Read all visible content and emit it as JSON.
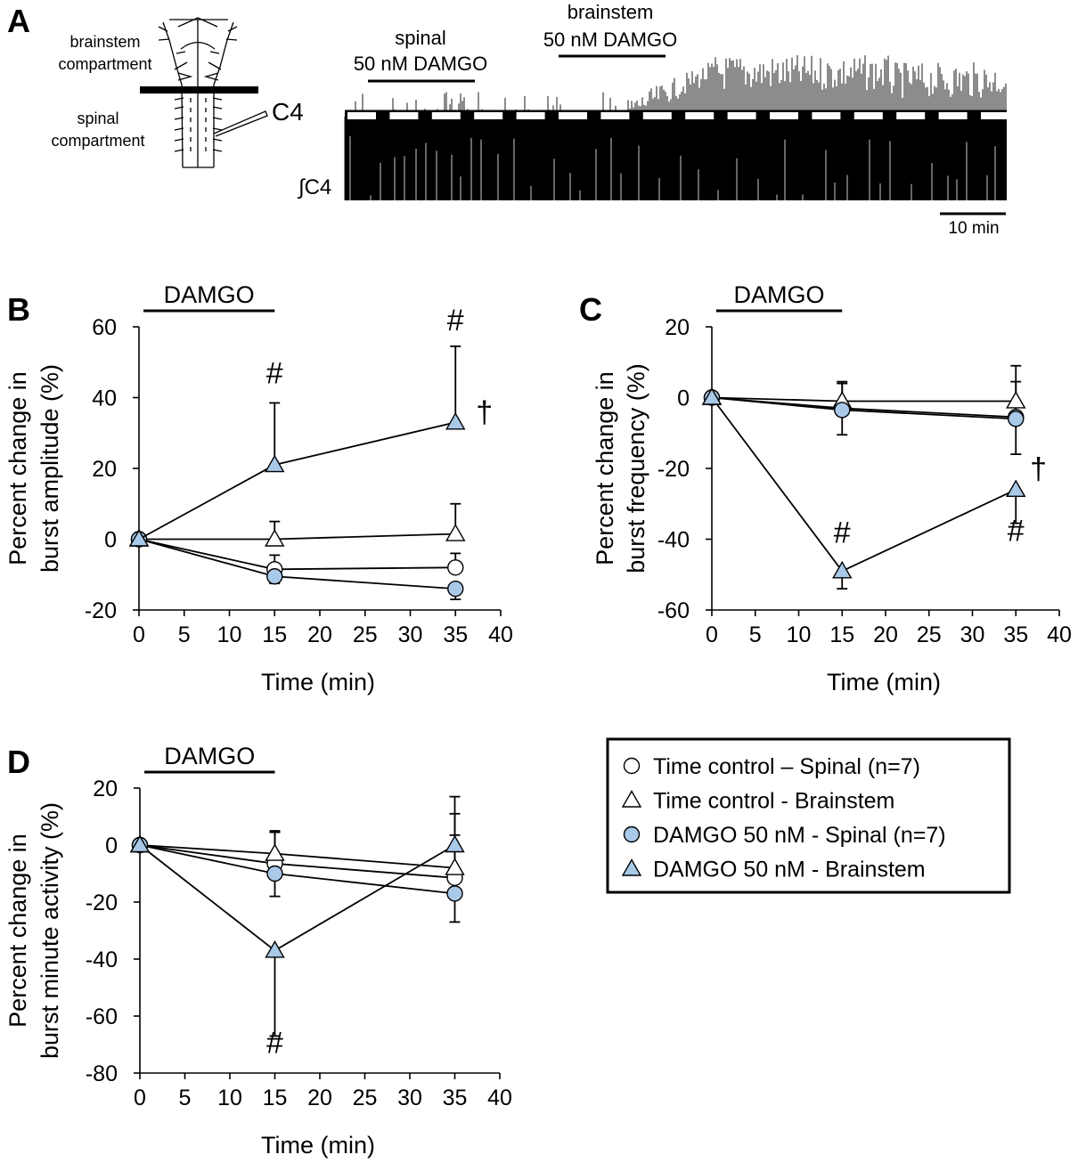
{
  "colors": {
    "accent": "#a9c9e8",
    "ink": "#000000",
    "paper": "#ffffff"
  },
  "panel_a": {
    "letter": "A",
    "schematic": {
      "brainstem_line1": "brainstem",
      "brainstem_line2": "compartment",
      "spinal_line1": "spinal",
      "spinal_line2": "compartment",
      "electrode_label": "C4"
    },
    "trace": {
      "spinal_drug_line1": "spinal",
      "spinal_drug_line2": "50 nM DAMGO",
      "brainstem_drug_line1": "brainstem",
      "brainstem_drug_line2": "50 nM DAMGO",
      "trace_label": "∫C4",
      "scale_bar_label": "10 min"
    }
  },
  "legend": {
    "entries": [
      {
        "label": "Time control – Spinal (n=7)",
        "marker": "circle",
        "fill": "#ffffff"
      },
      {
        "label": "Time control - Brainstem",
        "marker": "triangle",
        "fill": "#ffffff"
      },
      {
        "label": "DAMGO 50 nM - Spinal (n=7)",
        "marker": "circle",
        "fill": "#a9c9e8"
      },
      {
        "label": "DAMGO 50 nM - Brainstem",
        "marker": "triangle",
        "fill": "#a9c9e8"
      }
    ]
  },
  "chart_data": [
    {
      "id": "B",
      "letter": "B",
      "type": "line",
      "title": "",
      "xlabel": "Time (min)",
      "ylabel_line1": "Percent change in",
      "ylabel_line2": "burst amplitude (%)",
      "xlim": [
        0,
        40
      ],
      "ylim": [
        -20,
        60
      ],
      "xticks": [
        0,
        5,
        10,
        15,
        20,
        25,
        30,
        35,
        40
      ],
      "yticks": [
        -20,
        0,
        20,
        40,
        60
      ],
      "drug_bar": {
        "label": "DAMGO",
        "from": 0.5,
        "to": 15
      },
      "x": [
        0,
        15,
        35
      ],
      "series": [
        {
          "name": "Time control – Spinal (n=7)",
          "marker": "circle",
          "fill": "#ffffff",
          "values": [
            0,
            -8.5,
            -8
          ],
          "errors": [
            0,
            4,
            4
          ]
        },
        {
          "name": "Time control - Brainstem",
          "marker": "triangle",
          "fill": "#ffffff",
          "values": [
            0,
            0,
            1.5
          ],
          "errors": [
            0,
            5,
            8.5
          ]
        },
        {
          "name": "DAMGO 50 nM - Spinal (n=7)",
          "marker": "circle",
          "fill": "#a9c9e8",
          "values": [
            0,
            -10.5,
            -14
          ],
          "errors": [
            0,
            2,
            3
          ]
        },
        {
          "name": "DAMGO 50 nM - Brainstem",
          "marker": "triangle",
          "fill": "#a9c9e8",
          "values": [
            0,
            21,
            33
          ],
          "errors": [
            0,
            17.5,
            21.5
          ]
        }
      ],
      "annotations": [
        {
          "text": "#",
          "x": 15,
          "y": 44
        },
        {
          "text": "#",
          "x": 35,
          "y": 59
        },
        {
          "text": "†",
          "x": 38.2,
          "y": 33
        }
      ]
    },
    {
      "id": "C",
      "letter": "C",
      "type": "line",
      "title": "",
      "xlabel": "Time (min)",
      "ylabel_line1": "Percent change in",
      "ylabel_line2": "burst frequency (%)",
      "xlim": [
        0,
        40
      ],
      "ylim": [
        -60,
        20
      ],
      "xticks": [
        0,
        5,
        10,
        15,
        20,
        25,
        30,
        35,
        40
      ],
      "yticks": [
        -60,
        -40,
        -20,
        0,
        20
      ],
      "drug_bar": {
        "label": "DAMGO",
        "from": 0.5,
        "to": 15
      },
      "x": [
        0,
        15,
        35
      ],
      "series": [
        {
          "name": "Time control – Spinal (n=7)",
          "marker": "circle",
          "fill": "#ffffff",
          "values": [
            0,
            -3,
            -5.5
          ],
          "errors": [
            0,
            7,
            10
          ]
        },
        {
          "name": "Time control - Brainstem",
          "marker": "triangle",
          "fill": "#ffffff",
          "values": [
            0,
            -1,
            -1
          ],
          "errors": [
            0,
            5.5,
            10
          ]
        },
        {
          "name": "DAMGO 50 nM - Spinal (n=7)",
          "marker": "circle",
          "fill": "#a9c9e8",
          "values": [
            0,
            -3.5,
            -6
          ],
          "errors": [
            0,
            7,
            10
          ]
        },
        {
          "name": "DAMGO 50 nM - Brainstem",
          "marker": "triangle",
          "fill": "#a9c9e8",
          "values": [
            0,
            -49,
            -26
          ],
          "errors": [
            0,
            5,
            9.5
          ]
        }
      ],
      "annotations": [
        {
          "text": "#",
          "x": 15,
          "y": -41
        },
        {
          "text": "#",
          "x": 35,
          "y": -40.5
        },
        {
          "text": "†",
          "x": 37.6,
          "y": -23
        }
      ]
    },
    {
      "id": "D",
      "letter": "D",
      "type": "line",
      "title": "",
      "xlabel": "Time (min)",
      "ylabel_line1": "Percent change in",
      "ylabel_line2": "burst minute activity (%)",
      "xlim": [
        0,
        40
      ],
      "ylim": [
        -80,
        20
      ],
      "xticks": [
        0,
        5,
        10,
        15,
        20,
        25,
        30,
        35,
        40
      ],
      "yticks": [
        -80,
        -60,
        -40,
        -20,
        0,
        20
      ],
      "drug_bar": {
        "label": "DAMGO",
        "from": 0.5,
        "to": 15
      },
      "x": [
        0,
        15,
        35
      ],
      "series": [
        {
          "name": "Time control – Spinal (n=7)",
          "marker": "circle",
          "fill": "#ffffff",
          "values": [
            0,
            -6.5,
            -11.5
          ],
          "errors": [
            0,
            11,
            15
          ]
        },
        {
          "name": "Time control - Brainstem",
          "marker": "triangle",
          "fill": "#ffffff",
          "values": [
            0,
            -3,
            -8
          ],
          "errors": [
            0,
            8,
            19
          ]
        },
        {
          "name": "DAMGO 50 nM - Spinal (n=7)",
          "marker": "circle",
          "fill": "#a9c9e8",
          "values": [
            0,
            -10,
            -17
          ],
          "errors": [
            0,
            8,
            10
          ]
        },
        {
          "name": "DAMGO 50 nM - Brainstem",
          "marker": "triangle",
          "fill": "#a9c9e8",
          "values": [
            0,
            -37,
            0
          ],
          "errors": [
            0,
            30,
            17
          ]
        }
      ],
      "annotations": [
        {
          "text": "#",
          "x": 15,
          "y": -73
        }
      ]
    }
  ]
}
